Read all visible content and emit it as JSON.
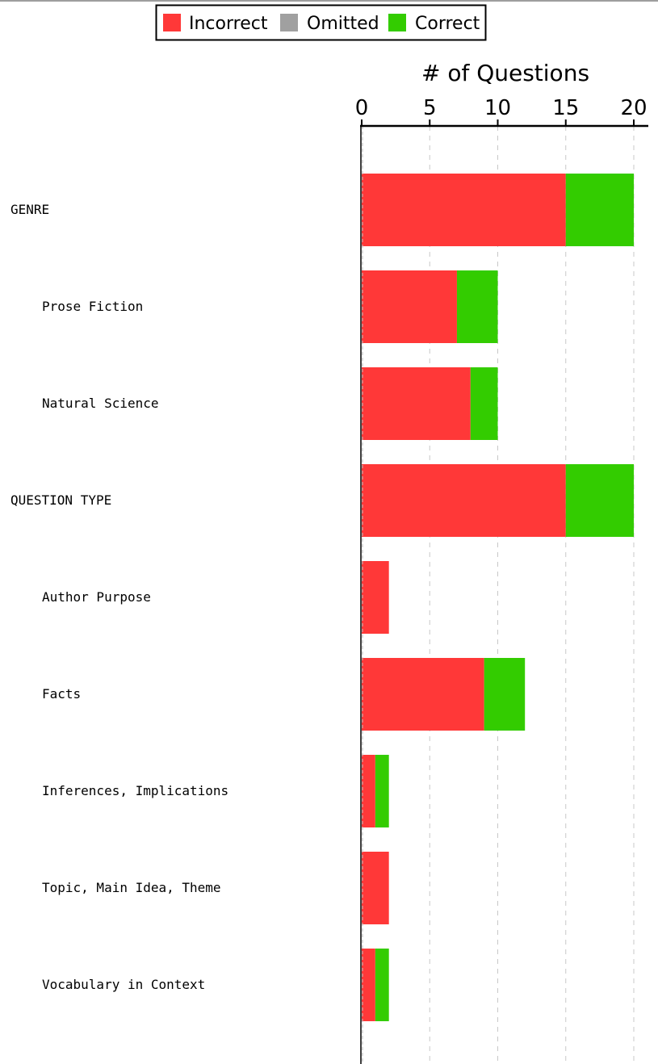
{
  "chart_data": {
    "type": "bar",
    "orientation": "horizontal",
    "stacked": true,
    "xlabel": "# of Questions",
    "xlim": [
      0,
      20
    ],
    "xticks": [
      0,
      5,
      10,
      15,
      20
    ],
    "xaxis_position": "top",
    "grid": "vertical dashed",
    "legend_position": "top-center",
    "categories": [
      {
        "label": "GENRE",
        "indent": 0
      },
      {
        "label": "Prose Fiction",
        "indent": 1
      },
      {
        "label": "Natural Science",
        "indent": 1
      },
      {
        "label": "QUESTION TYPE",
        "indent": 0
      },
      {
        "label": "Author Purpose",
        "indent": 1
      },
      {
        "label": "Facts",
        "indent": 1
      },
      {
        "label": "Inferences, Implications",
        "indent": 1
      },
      {
        "label": "Topic, Main Idea, Theme",
        "indent": 1
      },
      {
        "label": "Vocabulary in Context",
        "indent": 1
      }
    ],
    "series": [
      {
        "name": "Incorrect",
        "color": "#ff3838",
        "values": [
          15,
          7,
          8,
          15,
          2,
          9,
          1,
          2,
          1
        ]
      },
      {
        "name": "Omitted",
        "color": "#a0a0a0",
        "values": [
          0,
          0,
          0,
          0,
          0,
          0,
          0,
          0,
          0
        ]
      },
      {
        "name": "Correct",
        "color": "#33cc00",
        "values": [
          5,
          3,
          2,
          5,
          0,
          3,
          1,
          0,
          1
        ]
      }
    ]
  }
}
